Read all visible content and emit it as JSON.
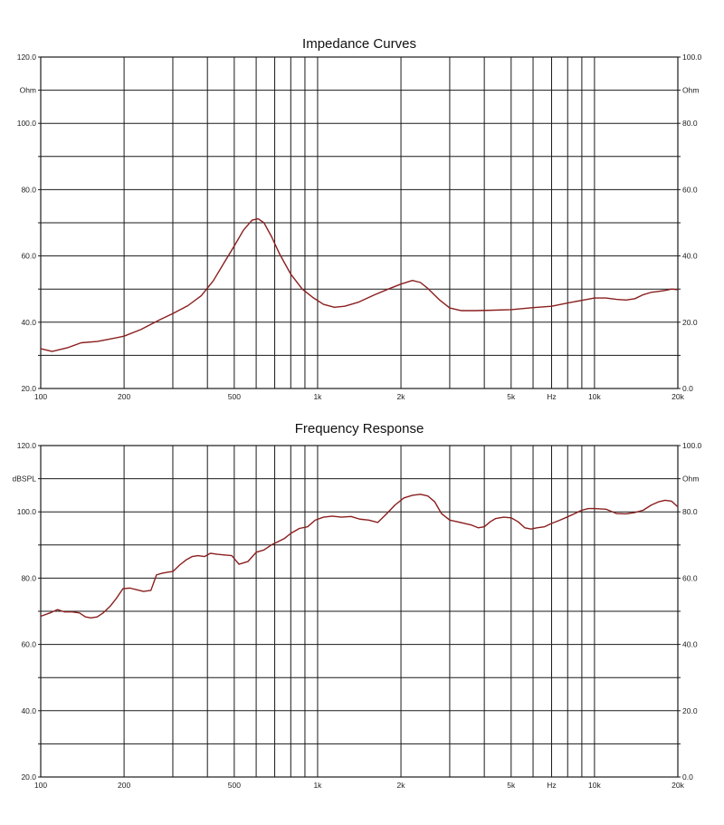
{
  "chart_data": [
    {
      "id": "impedance",
      "type": "line",
      "title": "Impedance Curves",
      "x_scale": "log",
      "xlim": [
        100,
        20000
      ],
      "x_ticks": [
        100,
        200,
        500,
        1000,
        2000,
        5000,
        10000,
        20000
      ],
      "x_tick_labels": [
        "100",
        "200",
        "500",
        "1k",
        "2k",
        "5k",
        "10k",
        "20k"
      ],
      "x_unit_label": "Hz",
      "ylim_left": [
        20,
        120
      ],
      "ylim_right": [
        0,
        100
      ],
      "y_left_labels": [
        "120.0",
        "100.0",
        "80.0",
        "60.0",
        "40.0",
        "20.0"
      ],
      "y_right_labels": [
        "100.0",
        "80.0",
        "60.0",
        "40.0",
        "20.0",
        "0.0"
      ],
      "y_left_unit": "Ohm",
      "y_right_unit": "Ohm",
      "grid": true,
      "series": [
        {
          "color": "#8b1e1e",
          "x": [
            100,
            110,
            125,
            140,
            160,
            180,
            200,
            230,
            270,
            300,
            340,
            380,
            420,
            460,
            500,
            540,
            580,
            610,
            640,
            680,
            730,
            800,
            880,
            960,
            1050,
            1150,
            1250,
            1400,
            1600,
            1800,
            2000,
            2200,
            2350,
            2500,
            2750,
            3000,
            3300,
            3700,
            4200,
            5000,
            6000,
            7000,
            8000,
            9000,
            10000,
            11000,
            12000,
            13000,
            14000,
            15000,
            16000,
            17000,
            18000,
            19000,
            20000
          ],
          "y": [
            32.0,
            31.2,
            32.3,
            33.8,
            34.2,
            35.0,
            35.8,
            37.8,
            40.8,
            42.6,
            45.0,
            48.0,
            52.5,
            58.0,
            63.0,
            67.8,
            70.8,
            71.2,
            70.0,
            66.0,
            60.5,
            54.5,
            50.0,
            47.5,
            45.4,
            44.5,
            44.8,
            46.0,
            48.2,
            50.0,
            51.5,
            52.6,
            52.0,
            50.2,
            46.8,
            44.3,
            43.5,
            43.5,
            43.6,
            43.8,
            44.4,
            44.8,
            45.8,
            46.6,
            47.3,
            47.3,
            46.9,
            46.7,
            47.1,
            48.3,
            49.0,
            49.3,
            49.6,
            50.0,
            49.8
          ]
        }
      ]
    },
    {
      "id": "frequency-response",
      "type": "line",
      "title": "Frequency Response",
      "x_scale": "log",
      "xlim": [
        100,
        20000
      ],
      "x_ticks": [
        100,
        200,
        500,
        1000,
        2000,
        5000,
        10000,
        20000
      ],
      "x_tick_labels": [
        "100",
        "200",
        "500",
        "1k",
        "2k",
        "5k",
        "10k",
        "20k"
      ],
      "x_unit_label": "Hz",
      "ylim_left": [
        20,
        120
      ],
      "ylim_right": [
        0,
        100
      ],
      "y_left_labels": [
        "120.0",
        "100.0",
        "80.0",
        "60.0",
        "40.0",
        "20.0"
      ],
      "y_right_labels": [
        "100.0",
        "80.0",
        "60.0",
        "40.0",
        "20.0",
        "0.0"
      ],
      "y_left_unit": "dBSPL",
      "y_right_unit": "Ohm",
      "grid": true,
      "series": [
        {
          "color": "#8b1e1e",
          "x": [
            100,
            108,
            115,
            122,
            130,
            138,
            145,
            152,
            160,
            168,
            178,
            188,
            198,
            210,
            222,
            235,
            250,
            262,
            275,
            288,
            300,
            318,
            335,
            352,
            370,
            390,
            410,
            435,
            460,
            490,
            520,
            560,
            600,
            640,
            680,
            720,
            760,
            800,
            860,
            920,
            980,
            1050,
            1130,
            1220,
            1320,
            1420,
            1530,
            1650,
            1780,
            1900,
            2050,
            2200,
            2350,
            2500,
            2650,
            2800,
            3000,
            3200,
            3400,
            3600,
            3800,
            4000,
            4200,
            4400,
            4700,
            5000,
            5300,
            5600,
            5900,
            6200,
            6600,
            7000,
            7500,
            8000,
            8500,
            9000,
            9500,
            10000,
            11000,
            12000,
            13000,
            14000,
            15000,
            16000,
            17000,
            18000,
            19000,
            20000
          ],
          "y": [
            68.5,
            69.5,
            70.5,
            69.8,
            69.8,
            69.5,
            68.3,
            68.0,
            68.3,
            69.5,
            71.5,
            74.0,
            76.8,
            77.0,
            76.5,
            76.0,
            76.3,
            81.0,
            81.5,
            81.8,
            82.0,
            84.0,
            85.5,
            86.5,
            86.8,
            86.5,
            87.5,
            87.2,
            87.0,
            86.8,
            84.2,
            85.0,
            87.8,
            88.5,
            90.0,
            91.0,
            92.0,
            93.5,
            95.0,
            95.5,
            97.5,
            98.4,
            98.7,
            98.4,
            98.6,
            97.8,
            97.5,
            96.8,
            99.5,
            102.0,
            104.2,
            105.0,
            105.3,
            104.8,
            103.0,
            99.5,
            97.5,
            97.0,
            96.5,
            96.0,
            95.2,
            95.5,
            97.0,
            98.0,
            98.4,
            98.2,
            97.0,
            95.2,
            94.8,
            95.2,
            95.5,
            96.5,
            97.5,
            98.5,
            99.5,
            100.5,
            101.0,
            101.0,
            100.8,
            99.5,
            99.4,
            99.8,
            100.5,
            102.0,
            103.0,
            103.5,
            103.2,
            101.5
          ]
        }
      ]
    }
  ]
}
